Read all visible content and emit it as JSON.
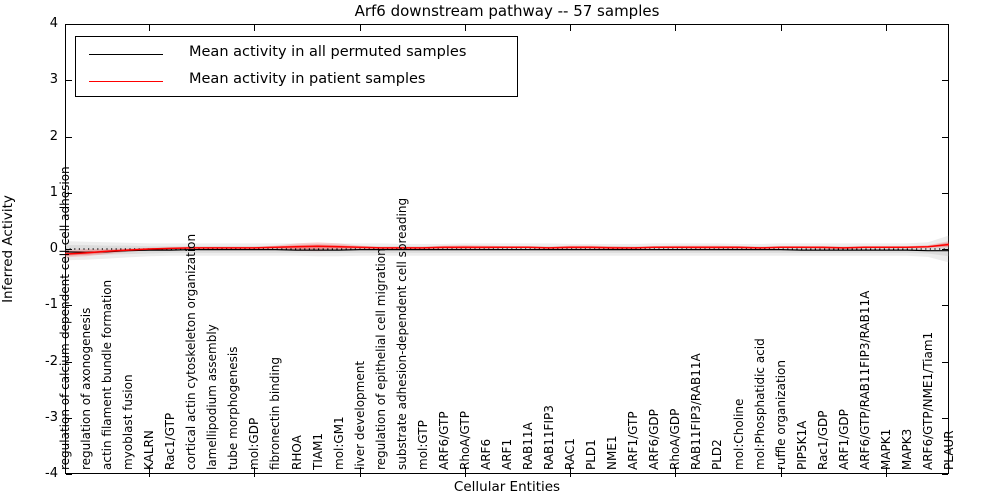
{
  "title": "Arf6 downstream pathway -- 57 samples",
  "axes": {
    "xlabel": "Cellular Entities",
    "ylabel": "Inferred Activity"
  },
  "legend": {
    "entries": [
      {
        "label": "Mean activity in all permuted samples",
        "color": "#000000"
      },
      {
        "label": "Mean activity in patient samples",
        "color": "#ff0000"
      }
    ]
  },
  "chart_data": {
    "type": "line",
    "title": "Arf6 downstream pathway -- 57 samples",
    "xlabel": "Cellular Entities",
    "ylabel": "Inferred Activity",
    "ylim": [
      -4,
      4
    ],
    "yticks": [
      4,
      3,
      2,
      1,
      0,
      -1,
      -2,
      -3,
      -4
    ],
    "x_major_tick_indices": [
      4,
      9,
      14,
      19,
      24,
      29,
      34,
      39
    ],
    "grid": false,
    "legend_position": "upper left",
    "categories": [
      "regulation of calcium-dependent cell-cell adhesion",
      "regulation of axonogenesis",
      "actin filament bundle formation",
      "myoblast fusion",
      "KALRN",
      "Rac1/GTP",
      "cortical actin cytoskeleton organization",
      "lamellipodium assembly",
      "tube morphogenesis",
      "mol:GDP",
      "fibronectin binding",
      "RHOA",
      "TIAM1",
      "mol:GM1",
      "liver development",
      "regulation of epithelial cell migration",
      "substrate adhesion-dependent cell spreading",
      "mol:GTP",
      "ARF6/GTP",
      "RhoA/GTP",
      "ARF6",
      "ARF1",
      "RAB11A",
      "RAB11FIP3",
      "RAC1",
      "PLD1",
      "NME1",
      "ARF1/GTP",
      "ARF6/GDP",
      "RhoA/GDP",
      "RAB11FIP3/RAB11A",
      "PLD2",
      "mol:Choline",
      "mol:Phosphatidic acid",
      "ruffle organization",
      "PIP5K1A",
      "Rac1/GDP",
      "ARF1/GDP",
      "ARF6/GTP/RAB11FIP3/RAB11A",
      "MAPK1",
      "MAPK3",
      "ARF6/GTP/NME1/Tiam1",
      "PLAUR"
    ],
    "zero_line": {
      "value": 0,
      "color": "#000000",
      "style": "dotted"
    },
    "series": [
      {
        "name": "Mean activity in all permuted samples",
        "color": "#000000",
        "style": "solid",
        "values": [
          -0.05,
          -0.06,
          -0.05,
          -0.03,
          -0.02,
          -0.02,
          -0.01,
          -0.01,
          -0.01,
          -0.01,
          -0.01,
          -0.02,
          -0.02,
          -0.02,
          -0.01,
          -0.01,
          -0.01,
          -0.01,
          -0.01,
          -0.01,
          -0.01,
          -0.01,
          -0.01,
          -0.01,
          -0.01,
          -0.01,
          -0.01,
          -0.01,
          -0.01,
          -0.01,
          -0.01,
          -0.01,
          -0.01,
          -0.01,
          -0.01,
          -0.02,
          -0.02,
          -0.02,
          -0.02,
          -0.02,
          -0.02,
          -0.03,
          -0.03
        ]
      },
      {
        "name": "Mean activity in patient samples",
        "color": "#ff0000",
        "style": "solid",
        "values": [
          -0.09,
          -0.07,
          -0.04,
          -0.02,
          0.0,
          0.01,
          0.02,
          0.02,
          0.02,
          0.02,
          0.03,
          0.04,
          0.05,
          0.04,
          0.03,
          0.02,
          0.02,
          0.02,
          0.03,
          0.03,
          0.03,
          0.03,
          0.03,
          0.02,
          0.03,
          0.03,
          0.02,
          0.02,
          0.03,
          0.03,
          0.03,
          0.03,
          0.03,
          0.02,
          0.03,
          0.03,
          0.03,
          0.02,
          0.03,
          0.03,
          0.03,
          0.04,
          0.08
        ]
      }
    ],
    "bands": [
      {
        "name": "permuted-outer-band",
        "color": "#999999",
        "opacity": 0.18,
        "upper": [
          0.14,
          0.13,
          0.12,
          0.11,
          0.1,
          0.1,
          0.1,
          0.1,
          0.1,
          0.1,
          0.1,
          0.1,
          0.1,
          0.1,
          0.1,
          0.1,
          0.09,
          0.09,
          0.09,
          0.1,
          0.1,
          0.1,
          0.1,
          0.1,
          0.09,
          0.09,
          0.09,
          0.09,
          0.1,
          0.1,
          0.1,
          0.1,
          0.09,
          0.09,
          0.1,
          0.1,
          0.1,
          0.1,
          0.1,
          0.1,
          0.1,
          0.12,
          0.24
        ],
        "lower": [
          -0.2,
          -0.19,
          -0.17,
          -0.15,
          -0.13,
          -0.12,
          -0.12,
          -0.12,
          -0.12,
          -0.12,
          -0.12,
          -0.12,
          -0.13,
          -0.13,
          -0.12,
          -0.12,
          -0.12,
          -0.12,
          -0.12,
          -0.12,
          -0.12,
          -0.12,
          -0.12,
          -0.12,
          -0.12,
          -0.12,
          -0.12,
          -0.12,
          -0.12,
          -0.12,
          -0.12,
          -0.12,
          -0.12,
          -0.12,
          -0.12,
          -0.12,
          -0.12,
          -0.12,
          -0.12,
          -0.12,
          -0.12,
          -0.14,
          -0.24
        ]
      },
      {
        "name": "permuted-inner-band",
        "color": "#999999",
        "opacity": 0.2,
        "upper": [
          0.07,
          0.07,
          0.06,
          0.06,
          0.05,
          0.05,
          0.05,
          0.05,
          0.05,
          0.05,
          0.05,
          0.05,
          0.05,
          0.05,
          0.05,
          0.05,
          0.05,
          0.05,
          0.05,
          0.05,
          0.05,
          0.05,
          0.05,
          0.05,
          0.05,
          0.05,
          0.05,
          0.05,
          0.05,
          0.05,
          0.05,
          0.05,
          0.05,
          0.05,
          0.05,
          0.05,
          0.05,
          0.05,
          0.05,
          0.05,
          0.05,
          0.06,
          0.12
        ],
        "lower": [
          -0.12,
          -0.11,
          -0.1,
          -0.09,
          -0.08,
          -0.07,
          -0.07,
          -0.07,
          -0.07,
          -0.07,
          -0.07,
          -0.07,
          -0.07,
          -0.07,
          -0.07,
          -0.07,
          -0.07,
          -0.07,
          -0.07,
          -0.07,
          -0.07,
          -0.07,
          -0.07,
          -0.07,
          -0.07,
          -0.07,
          -0.07,
          -0.07,
          -0.07,
          -0.07,
          -0.07,
          -0.07,
          -0.07,
          -0.07,
          -0.07,
          -0.07,
          -0.07,
          -0.07,
          -0.07,
          -0.07,
          -0.07,
          -0.08,
          -0.13
        ]
      },
      {
        "name": "patient-outer-band",
        "color": "#ff0000",
        "opacity": 0.15,
        "upper": [
          -0.02,
          0.0,
          0.0,
          0.01,
          0.02,
          0.03,
          0.04,
          0.04,
          0.04,
          0.04,
          0.06,
          0.1,
          0.12,
          0.1,
          0.06,
          0.04,
          0.04,
          0.04,
          0.06,
          0.07,
          0.06,
          0.05,
          0.05,
          0.04,
          0.06,
          0.06,
          0.05,
          0.04,
          0.05,
          0.06,
          0.06,
          0.06,
          0.05,
          0.04,
          0.05,
          0.05,
          0.04,
          0.04,
          0.05,
          0.05,
          0.05,
          0.07,
          0.14
        ],
        "lower": [
          -0.15,
          -0.13,
          -0.09,
          -0.05,
          -0.02,
          -0.01,
          0.0,
          0.0,
          0.0,
          0.0,
          -0.01,
          -0.03,
          -0.04,
          -0.02,
          0.0,
          0.0,
          0.0,
          0.0,
          0.0,
          0.0,
          0.0,
          0.01,
          0.01,
          0.0,
          0.0,
          0.0,
          0.0,
          0.0,
          0.01,
          0.01,
          0.0,
          0.0,
          0.0,
          0.0,
          0.01,
          0.01,
          0.0,
          0.0,
          0.01,
          0.01,
          0.01,
          0.02,
          0.03
        ]
      },
      {
        "name": "patient-inner-band",
        "color": "#ff0000",
        "opacity": 0.25,
        "upper": [
          -0.05,
          -0.03,
          -0.02,
          0.0,
          0.01,
          0.02,
          0.03,
          0.03,
          0.03,
          0.03,
          0.04,
          0.07,
          0.08,
          0.07,
          0.04,
          0.03,
          0.03,
          0.03,
          0.04,
          0.05,
          0.04,
          0.04,
          0.04,
          0.03,
          0.04,
          0.04,
          0.04,
          0.03,
          0.04,
          0.04,
          0.04,
          0.04,
          0.04,
          0.03,
          0.04,
          0.04,
          0.03,
          0.03,
          0.04,
          0.04,
          0.04,
          0.05,
          0.11
        ],
        "lower": [
          -0.12,
          -0.1,
          -0.07,
          -0.03,
          -0.01,
          0.0,
          0.01,
          0.01,
          0.01,
          0.01,
          0.01,
          0.0,
          0.0,
          0.01,
          0.01,
          0.01,
          0.01,
          0.01,
          0.01,
          0.01,
          0.01,
          0.02,
          0.02,
          0.01,
          0.01,
          0.01,
          0.01,
          0.01,
          0.02,
          0.02,
          0.01,
          0.01,
          0.01,
          0.01,
          0.02,
          0.02,
          0.01,
          0.01,
          0.02,
          0.02,
          0.02,
          0.03,
          0.05
        ]
      }
    ]
  }
}
